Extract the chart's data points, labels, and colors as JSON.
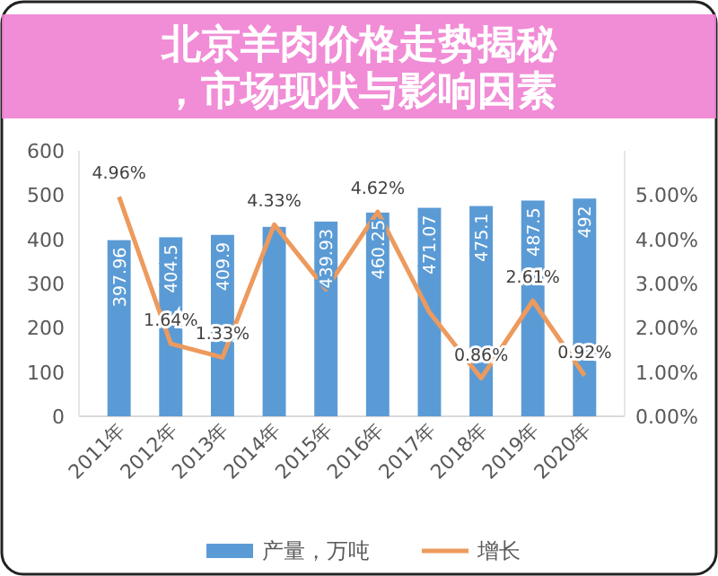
{
  "chart_data": {
    "type": "bar",
    "title": "北京羊肉价格走势揭秘，市场现状与影响因素",
    "categories": [
      "2011年",
      "2012年",
      "2013年",
      "2014年",
      "2015年",
      "2016年",
      "2017年",
      "2018年",
      "2019年",
      "2020年"
    ],
    "series": [
      {
        "name": "产量，万吨",
        "color": "#5b9bd5",
        "values": [
          397.96,
          404.5,
          409.9,
          428,
          439.93,
          460.25,
          471.07,
          475.1,
          487.5,
          492
        ],
        "value_labels": [
          "397.96",
          "404.5",
          "409.9",
          null,
          "439.93",
          "460.25",
          "471.07",
          "475.1",
          "487.5",
          "492"
        ]
      },
      {
        "name": "增长",
        "type": "line",
        "axis": "y2",
        "color": "#ed9a5e",
        "values": [
          4.96,
          1.64,
          1.33,
          4.33,
          2.87,
          4.62,
          2.35,
          0.86,
          2.61,
          0.92
        ],
        "value_labels": [
          "4.96%",
          "1.64%",
          "1.33%",
          "4.33%",
          null,
          "4.62%",
          null,
          "0.86%",
          "2.61%",
          "0.92%"
        ]
      }
    ],
    "ylim": [
      0,
      600
    ],
    "yticks": [
      0,
      100,
      200,
      300,
      400,
      500,
      600
    ],
    "y2lim": [
      0,
      6
    ],
    "y2ticks": [
      {
        "value": 0,
        "label": "0.00%"
      },
      {
        "value": 1,
        "label": "1.00%"
      },
      {
        "value": 2,
        "label": "2.00%"
      },
      {
        "value": 3,
        "label": "3.00%"
      },
      {
        "value": 4,
        "label": "4.00%"
      },
      {
        "value": 5,
        "label": "5.00%"
      }
    ],
    "grid": false,
    "legend": "bottom",
    "marker": "none",
    "line_style": "solid"
  }
}
